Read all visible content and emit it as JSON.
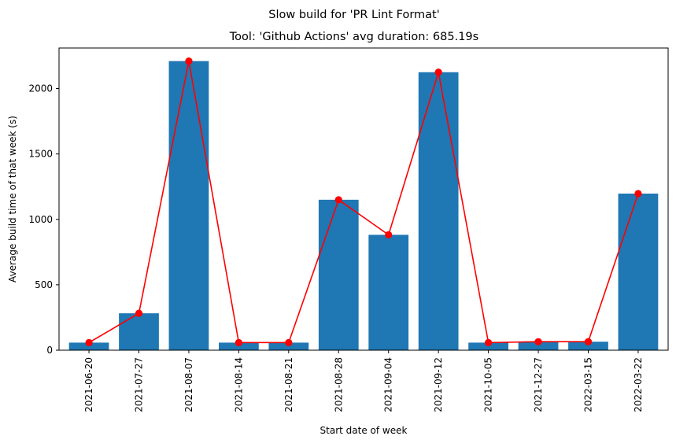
{
  "chart_data": {
    "type": "bar",
    "suptitle": "Slow build for 'PR Lint Format'",
    "title": "Tool: 'Github Actions' avg duration: 685.19s",
    "xlabel": "Start date of week",
    "ylabel": "Average build time of that week (s)",
    "categories": [
      "2021-06-20",
      "2021-07-27",
      "2021-08-07",
      "2021-08-14",
      "2021-08-21",
      "2021-08-28",
      "2021-09-04",
      "2021-09-12",
      "2021-10-05",
      "2021-12-27",
      "2022-03-15",
      "2022-03-22"
    ],
    "series": [
      {
        "type": "bar",
        "values": [
          58,
          282,
          2210,
          58,
          58,
          1150,
          882,
          2125,
          58,
          65,
          65,
          1197
        ],
        "color": "#1f77b4"
      },
      {
        "type": "line",
        "marker": "circle",
        "values": [
          58,
          282,
          2210,
          58,
          58,
          1150,
          882,
          2125,
          58,
          65,
          65,
          1197
        ],
        "color": "#ff0000"
      }
    ],
    "ylim": [
      0,
      2310
    ],
    "yticks": [
      0,
      500,
      1000,
      1500,
      2000
    ],
    "grid": false
  }
}
